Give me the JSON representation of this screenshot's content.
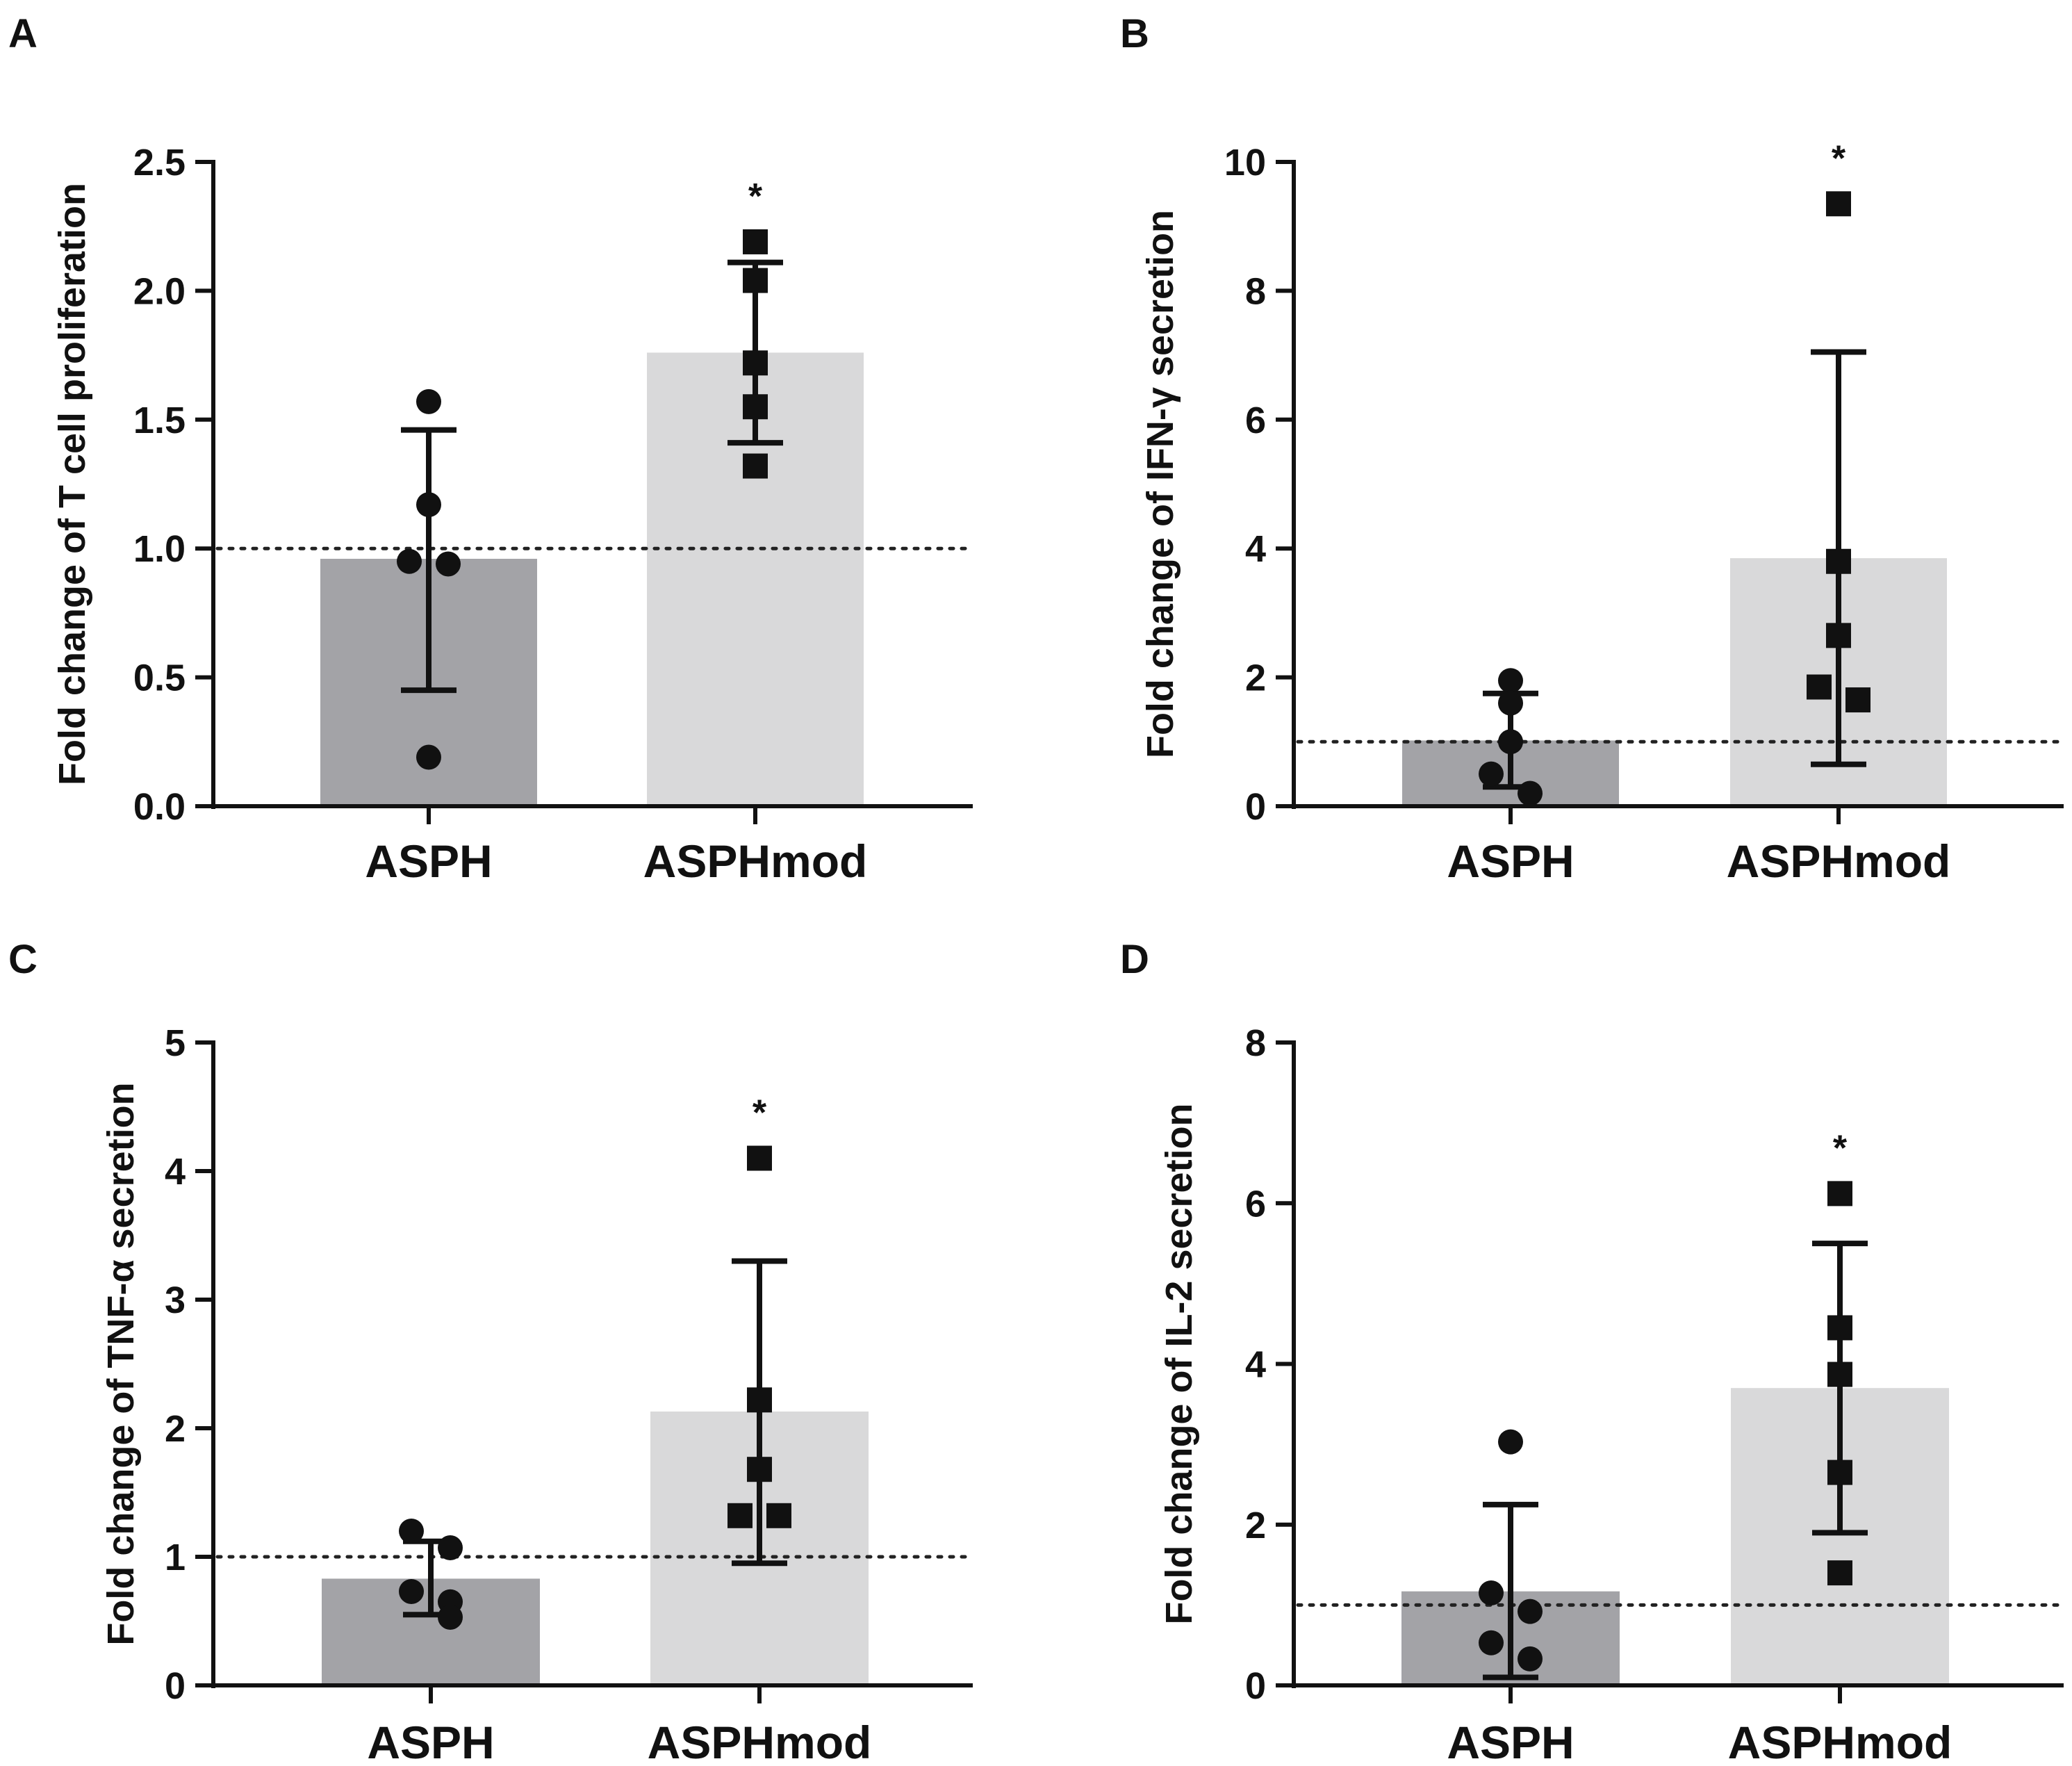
{
  "chart_data": [
    {
      "panel": "A",
      "type": "bar",
      "categories": [
        "ASPH",
        "ASPHmod"
      ],
      "values": [
        0.96,
        1.76
      ],
      "sd_lower": [
        0.45,
        1.41
      ],
      "sd_upper": [
        1.46,
        2.11
      ],
      "points": [
        [
          1.57,
          1.17,
          0.95,
          0.94,
          0.19
        ],
        [
          2.19,
          2.04,
          1.72,
          1.55,
          1.32
        ]
      ],
      "significance": [
        "",
        "*"
      ],
      "reference_line": 1.0,
      "ylabel": "Fold change of T cell proliferation",
      "ylim": [
        0,
        2.5
      ],
      "yticks": [
        "0.0",
        "0.5",
        "1.0",
        "1.5",
        "2.0",
        "2.5"
      ]
    },
    {
      "panel": "B",
      "type": "bar",
      "categories": [
        "ASPH",
        "ASPHmod"
      ],
      "values": [
        1.02,
        3.85
      ],
      "sd_lower": [
        0.3,
        0.65
      ],
      "sd_upper": [
        1.75,
        7.05
      ],
      "points": [
        [
          1.95,
          1.6,
          1.0,
          0.5,
          0.2
        ],
        [
          9.35,
          3.8,
          2.65,
          1.85,
          1.65
        ]
      ],
      "significance": [
        "",
        "*"
      ],
      "reference_line": 1.0,
      "ylabel": "Fold change of IFN-γ secretion",
      "ylim": [
        0,
        10
      ],
      "yticks": [
        "0",
        "2",
        "4",
        "6",
        "8",
        "10"
      ]
    },
    {
      "panel": "C",
      "type": "bar",
      "categories": [
        "ASPH",
        "ASPHmod"
      ],
      "values": [
        0.83,
        2.13
      ],
      "sd_lower": [
        0.55,
        0.95
      ],
      "sd_upper": [
        1.12,
        3.3
      ],
      "points": [
        [
          1.2,
          1.07,
          0.73,
          0.65,
          0.53
        ],
        [
          4.1,
          2.22,
          1.68,
          1.32,
          1.32
        ]
      ],
      "significance": [
        "",
        "*"
      ],
      "reference_line": 1.0,
      "ylabel": "Fold change of TNF-α secretion",
      "ylim": [
        0,
        5
      ],
      "yticks": [
        "0",
        "1",
        "2",
        "3",
        "4",
        "5"
      ]
    },
    {
      "panel": "D",
      "type": "bar",
      "categories": [
        "ASPH",
        "ASPHmod"
      ],
      "values": [
        1.17,
        3.7
      ],
      "sd_lower": [
        0.1,
        1.9
      ],
      "sd_upper": [
        2.25,
        5.5
      ],
      "points": [
        [
          3.03,
          1.15,
          0.92,
          0.53,
          0.33
        ],
        [
          6.12,
          4.45,
          3.87,
          2.65,
          1.4
        ]
      ],
      "significance": [
        "",
        "*"
      ],
      "reference_line": 1.0,
      "ylabel": "Fold change of IL-2 secretion",
      "ylim": [
        0,
        8
      ],
      "yticks": [
        "0",
        "2",
        "4",
        "6",
        "8"
      ]
    }
  ],
  "colors": {
    "asph_bar": "#a3a3a7",
    "asphmod_bar": "#d9d9da",
    "axis": "#111111"
  }
}
